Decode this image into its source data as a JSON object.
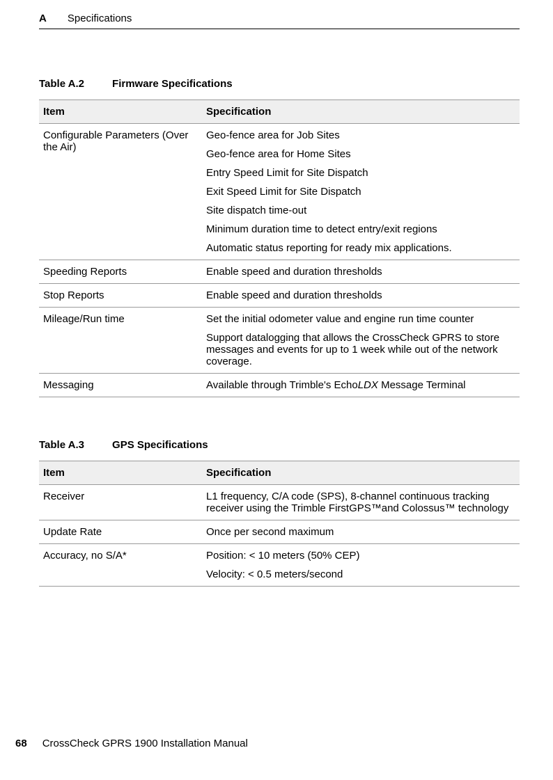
{
  "header": {
    "section_letter": "A",
    "section_title": "Specifications"
  },
  "tableA2": {
    "caption_label": "Table A.2",
    "caption_title": "Firmware Specifications",
    "col_item": "Item",
    "col_spec": "Specification",
    "rows": [
      {
        "item": "Configurable Parameters (Over the Air)",
        "specs": [
          "Geo-fence area for Job Sites",
          "Geo-fence area for Home Sites",
          "Entry Speed Limit for Site Dispatch",
          "Exit Speed Limit for Site Dispatch",
          "Site dispatch time-out",
          "Minimum duration time to detect entry/exit regions",
          "Automatic status reporting for ready mix applications."
        ]
      },
      {
        "item": "Speeding Reports",
        "specs": [
          "Enable speed and duration thresholds"
        ]
      },
      {
        "item": "Stop Reports",
        "specs": [
          "Enable speed and duration thresholds"
        ]
      },
      {
        "item": "Mileage/Run time",
        "specs": [
          "Set the initial odometer value and engine run time counter",
          "Support datalogging that allows the CrossCheck GPRS to store messages and events for up to 1 week while out of the network coverage."
        ]
      },
      {
        "item": "Messaging",
        "spec_prefix": "Available through Trimble's Echo",
        "spec_italic": "LDX",
        "spec_suffix": " Message Terminal"
      }
    ]
  },
  "tableA3": {
    "caption_label": "Table A.3",
    "caption_title": "GPS Specifications",
    "col_item": "Item",
    "col_spec": "Specification",
    "rows": [
      {
        "item": "Receiver",
        "specs": [
          "L1 frequency, C/A code (SPS), 8-channel continuous tracking receiver using the Trimble FirstGPS™and Colossus™ technology"
        ]
      },
      {
        "item": "Update Rate",
        "specs": [
          "Once per second maximum"
        ]
      },
      {
        "item": "Accuracy, no S/A*",
        "specs": [
          "Position: < 10 meters (50% CEP)",
          "Velocity: < 0.5 meters/second"
        ]
      }
    ]
  },
  "footer": {
    "page_num": "68",
    "manual_title": "CrossCheck GPRS 1900 Installation Manual"
  }
}
